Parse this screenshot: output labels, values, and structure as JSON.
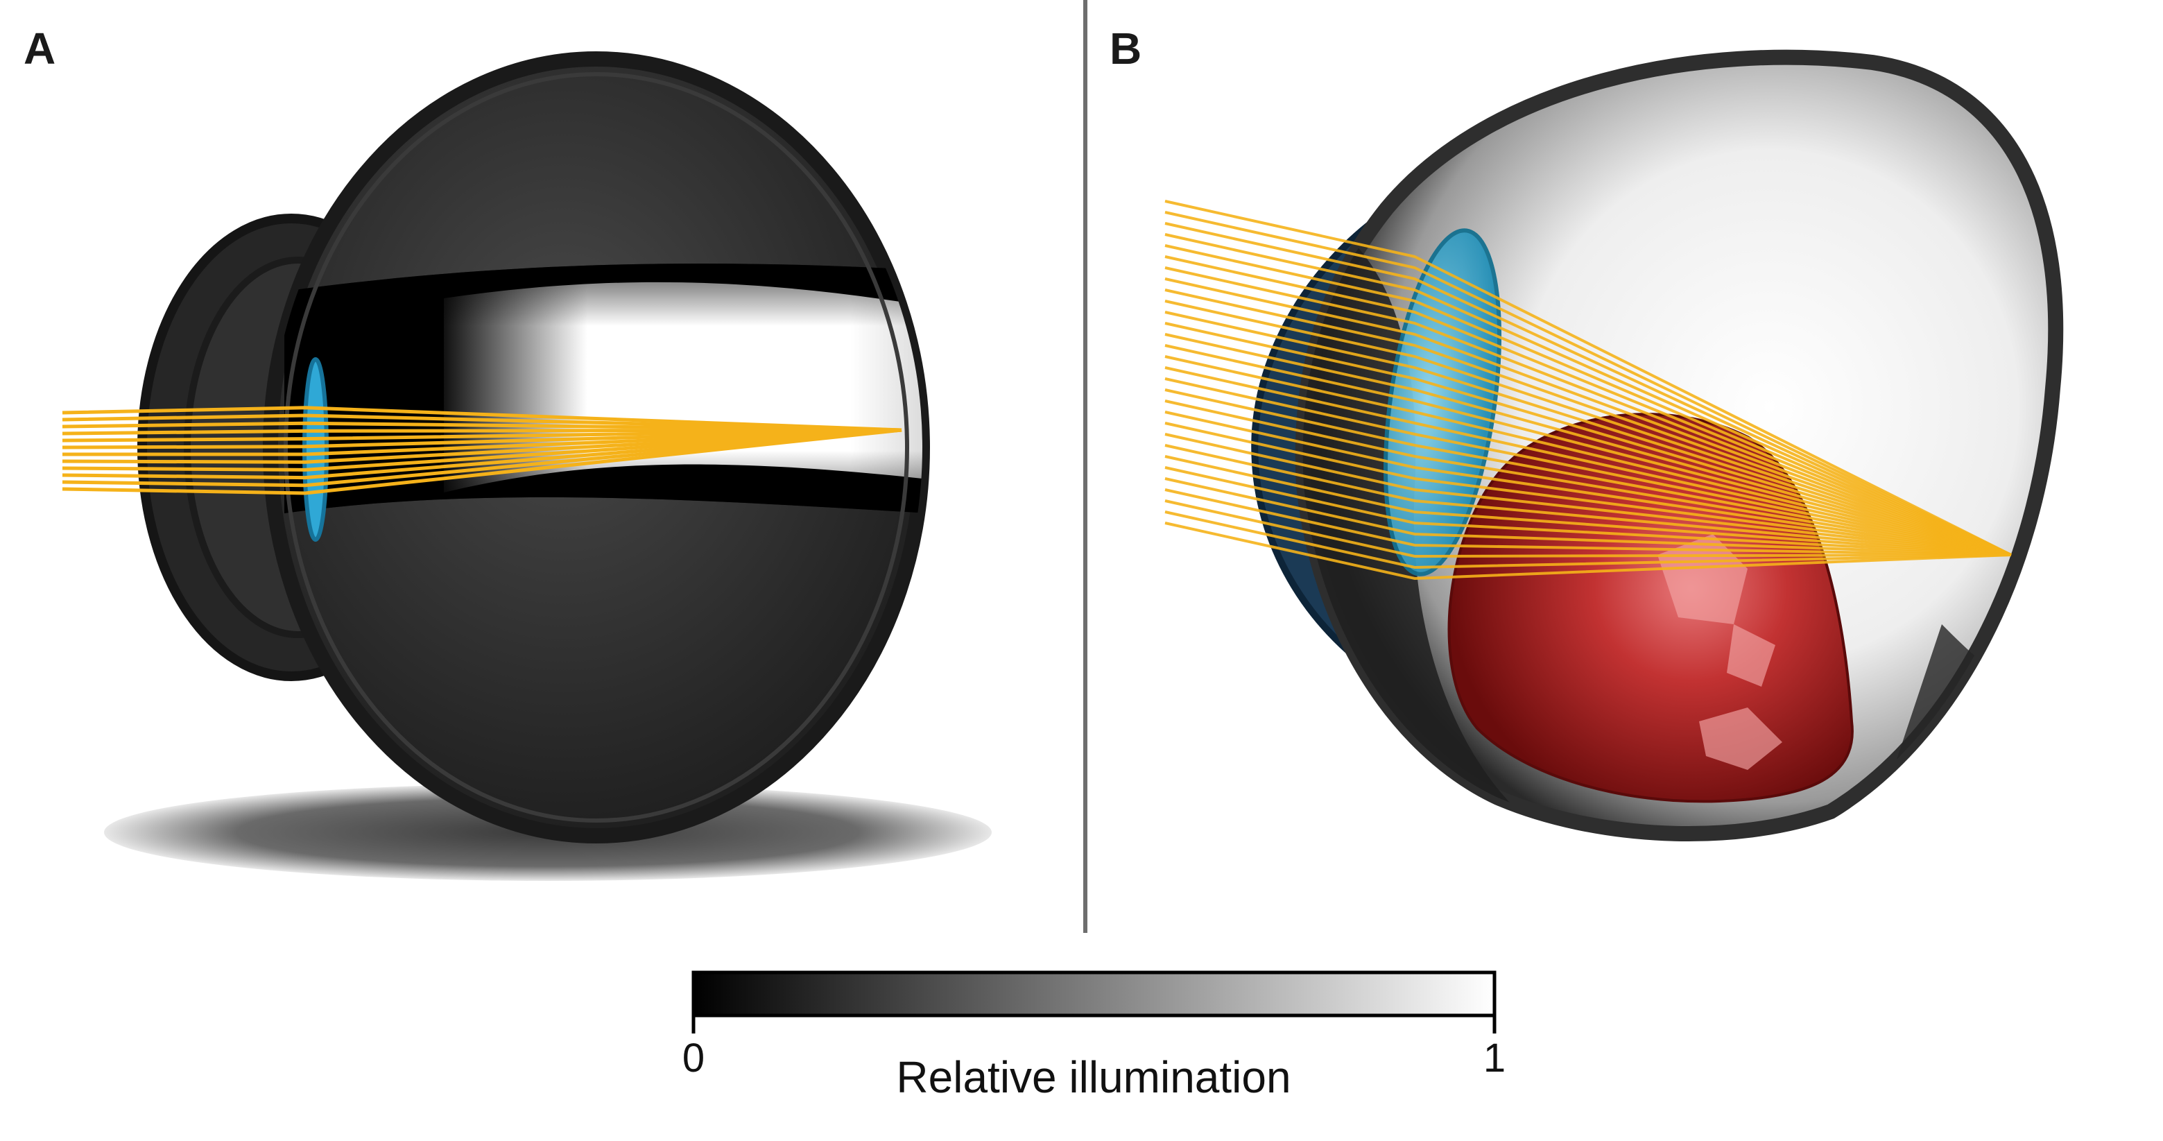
{
  "panels": [
    {
      "letter": "A"
    },
    {
      "letter": "B"
    }
  ],
  "colorbar": {
    "min_label": "0",
    "max_label": "1",
    "title": "Relative illumination",
    "min_value": 0,
    "max_value": 1
  },
  "colors": {
    "ray": "#f5b21a",
    "lens": "#2fa8d6",
    "tumor": "#a81b1b",
    "eye_shell": "#2b2b2b",
    "divider": "#6e6e6e"
  }
}
